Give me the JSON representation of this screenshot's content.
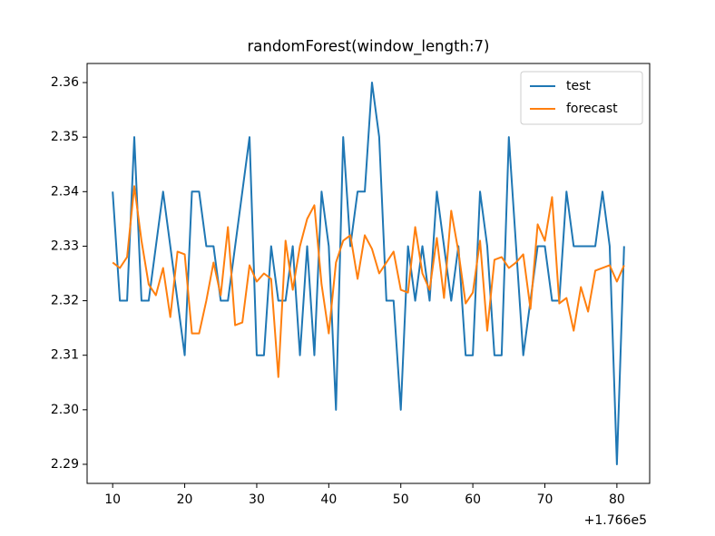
{
  "chart_data": {
    "type": "line",
    "title": "randomForest(window_length:7)",
    "x_offset_label": "+1.766e5",
    "x": [
      10,
      11,
      12,
      13,
      14,
      15,
      16,
      17,
      18,
      19,
      20,
      21,
      22,
      23,
      24,
      25,
      26,
      27,
      28,
      29,
      30,
      31,
      32,
      33,
      34,
      35,
      36,
      37,
      38,
      39,
      40,
      41,
      42,
      43,
      44,
      45,
      46,
      47,
      48,
      49,
      50,
      51,
      52,
      53,
      54,
      55,
      56,
      57,
      58,
      59,
      60,
      61,
      62,
      63,
      64,
      65,
      66,
      67,
      68,
      69,
      70,
      71,
      72,
      73,
      74,
      75,
      76,
      77,
      78,
      79,
      80,
      81
    ],
    "series": [
      {
        "name": "test",
        "color": "#1f77b4",
        "values": [
          2.34,
          2.32,
          2.32,
          2.35,
          2.32,
          2.32,
          2.33,
          2.34,
          2.33,
          2.32,
          2.31,
          2.34,
          2.34,
          2.33,
          2.33,
          2.32,
          2.32,
          2.33,
          2.34,
          2.35,
          2.31,
          2.31,
          2.33,
          2.32,
          2.32,
          2.33,
          2.31,
          2.33,
          2.31,
          2.34,
          2.33,
          2.3,
          2.35,
          2.33,
          2.34,
          2.34,
          2.36,
          2.35,
          2.32,
          2.32,
          2.3,
          2.33,
          2.32,
          2.33,
          2.32,
          2.34,
          2.33,
          2.32,
          2.33,
          2.31,
          2.31,
          2.34,
          2.33,
          2.31,
          2.31,
          2.35,
          2.33,
          2.31,
          2.32,
          2.33,
          2.33,
          2.32,
          2.32,
          2.34,
          2.33,
          2.33,
          2.33,
          2.33,
          2.34,
          2.33,
          2.29,
          2.33
        ]
      },
      {
        "name": "forecast",
        "color": "#ff7f0e",
        "values": [
          2.327,
          2.326,
          2.328,
          2.341,
          2.331,
          2.323,
          2.321,
          2.326,
          2.317,
          2.329,
          2.3285,
          2.314,
          2.314,
          2.32,
          2.327,
          2.321,
          2.3335,
          2.3155,
          2.316,
          2.3265,
          2.3235,
          2.325,
          2.324,
          2.306,
          2.331,
          2.322,
          2.33,
          2.335,
          2.3375,
          2.323,
          2.314,
          2.327,
          2.331,
          2.332,
          2.324,
          2.332,
          2.3295,
          2.325,
          2.327,
          2.329,
          2.322,
          2.3215,
          2.3335,
          2.325,
          2.322,
          2.3315,
          2.3205,
          2.3365,
          2.329,
          2.3195,
          2.3215,
          2.331,
          2.3145,
          2.3275,
          2.328,
          2.326,
          2.327,
          2.3285,
          2.3185,
          2.334,
          2.331,
          2.339,
          2.3195,
          2.3205,
          2.3145,
          2.3225,
          2.318,
          2.3255,
          2.326,
          2.3265,
          2.3235,
          2.3265
        ]
      }
    ],
    "xlim": [
      6.45,
      84.55
    ],
    "xticks": [
      10,
      20,
      30,
      40,
      50,
      60,
      70,
      80
    ],
    "ylim": [
      2.2865,
      2.3635
    ],
    "yticks": [
      2.29,
      {
        "value": 2.3,
        "label": "2.30"
      },
      2.31,
      2.32,
      2.33,
      2.34,
      2.35,
      2.36
    ],
    "grid": false,
    "legend": "upper right"
  }
}
